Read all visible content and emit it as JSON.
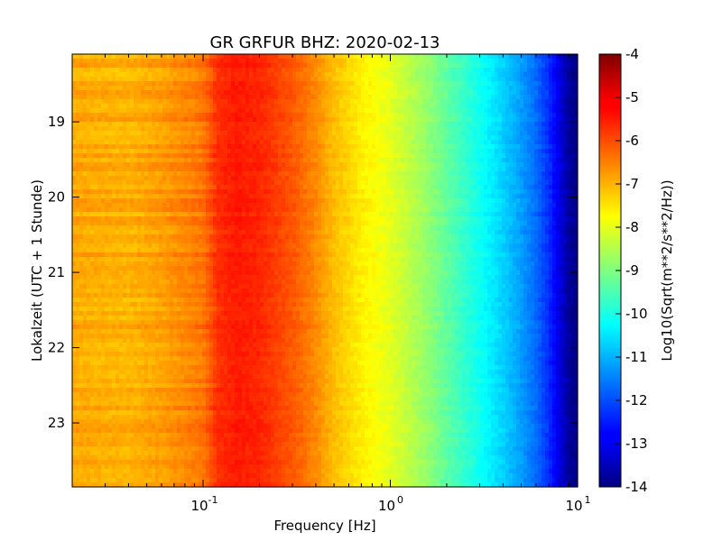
{
  "chart_data": {
    "type": "heatmap",
    "title": "GR GRFUR BHZ: 2020-02-13",
    "xlabel": "Frequency [Hz]",
    "ylabel": "Lokalzeit (UTC + 1 Stunde)",
    "x_scale": "log",
    "xlim": [
      0.02,
      10
    ],
    "ylim": [
      18.1,
      23.85
    ],
    "y_inverted": true,
    "x_ticks": [
      {
        "value": 0.1,
        "base": "10",
        "exp": "-1"
      },
      {
        "value": 1,
        "base": "10",
        "exp": "0"
      },
      {
        "value": 10,
        "base": "10",
        "exp": "1"
      }
    ],
    "y_ticks": [
      {
        "value": 19,
        "label": "19"
      },
      {
        "value": 20,
        "label": "20"
      },
      {
        "value": 21,
        "label": "21"
      },
      {
        "value": 22,
        "label": "22"
      },
      {
        "value": 23,
        "label": "23"
      }
    ],
    "colorbar": {
      "label": "Log10(Sqrt(m**2/s**2/Hz))",
      "min": -14,
      "max": -4,
      "colormap": "jet",
      "ticks": [
        "-4",
        "-5",
        "-6",
        "-7",
        "-8",
        "-9",
        "-10",
        "-11",
        "-12",
        "-13",
        "-14"
      ]
    },
    "profile": {
      "frequency_hz": [
        0.02,
        0.04,
        0.06,
        0.1,
        0.12,
        0.15,
        0.2,
        0.3,
        0.4,
        0.5,
        0.7,
        1.0,
        1.5,
        2.0,
        3.0,
        4.0,
        5.0,
        6.0,
        7.0,
        8.0,
        9.0,
        10.0
      ],
      "level": [
        -6.9,
        -7.0,
        -6.8,
        -6.4,
        -5.7,
        -5.5,
        -5.6,
        -6.1,
        -6.6,
        -7.1,
        -7.6,
        -8.0,
        -8.7,
        -9.3,
        -10.1,
        -10.7,
        -11.2,
        -11.7,
        -12.3,
        -13.0,
        -13.7,
        -14.0
      ]
    }
  }
}
